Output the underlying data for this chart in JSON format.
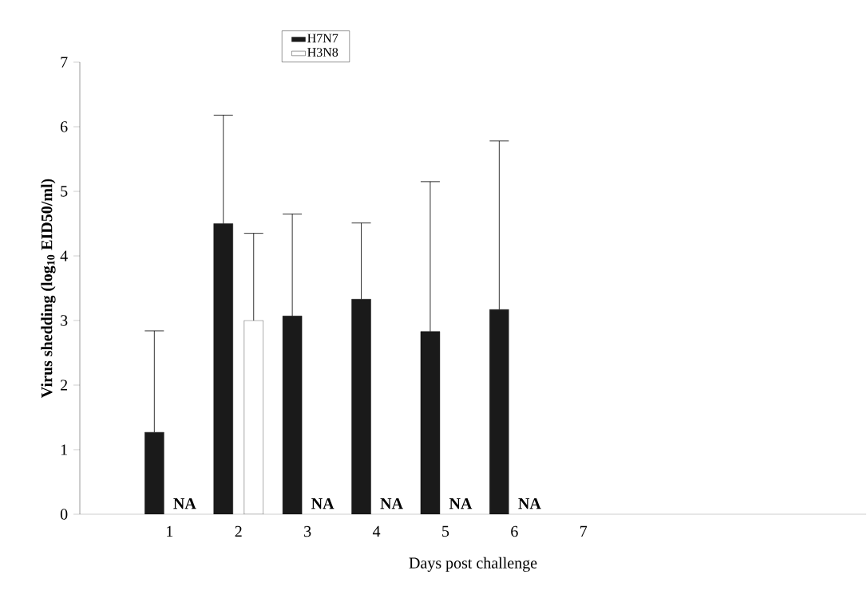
{
  "chart_data": {
    "type": "bar",
    "xlabel": "Days post challenge",
    "ylabel": "Virus shedding (log$_{10}$ EID50/ml)",
    "categories": [
      "1",
      "2",
      "3",
      "4",
      "5",
      "6",
      "7"
    ],
    "series": [
      {
        "name": "H7N7",
        "color": "#1a1a1a",
        "values": [
          1.27,
          4.5,
          3.07,
          3.33,
          2.83,
          3.17,
          null
        ],
        "errors": [
          [
            1.27,
            2.84
          ],
          [
            4.5,
            6.18
          ],
          [
            3.07,
            4.65
          ],
          [
            3.33,
            4.51
          ],
          [
            2.83,
            5.15
          ],
          [
            3.17,
            5.78
          ],
          null
        ]
      },
      {
        "name": "H3N8",
        "color": "#ffffff",
        "values": [
          null,
          3.0,
          null,
          null,
          null,
          null,
          null
        ],
        "errors": [
          null,
          [
            3.0,
            4.35
          ],
          null,
          null,
          null,
          null,
          null
        ]
      }
    ],
    "annotations": [
      "NA",
      "NA",
      "NA",
      "NA",
      "NA"
    ],
    "ylim": [
      0,
      7
    ],
    "yticks": [
      0,
      1,
      2,
      3,
      4,
      5,
      6,
      7
    ],
    "grid": false,
    "legend": "top"
  }
}
